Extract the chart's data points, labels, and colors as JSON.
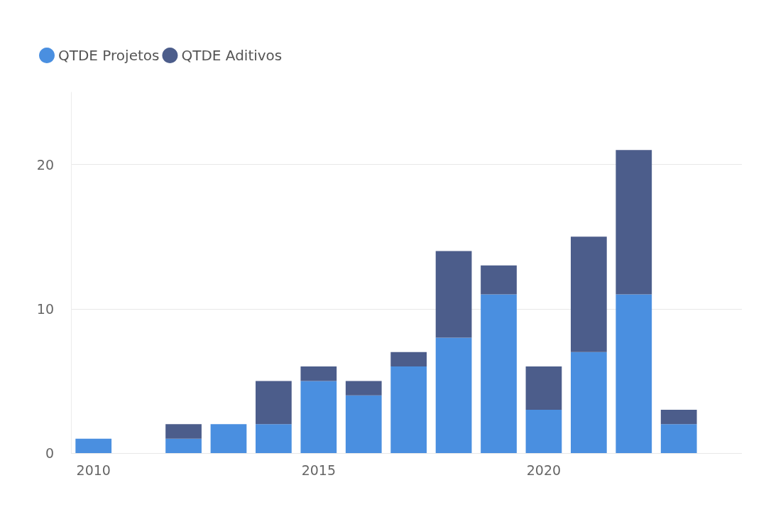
{
  "chart_data": {
    "type": "bar",
    "stacked": true,
    "x": [
      2010,
      2011,
      2012,
      2013,
      2014,
      2015,
      2016,
      2017,
      2018,
      2019,
      2020,
      2021,
      2022,
      2023
    ],
    "series": [
      {
        "name": "QTDE Projetos",
        "color": "#4a8fe0",
        "values": [
          1,
          null,
          1,
          2,
          2,
          5,
          4,
          6,
          8,
          11,
          3,
          7,
          11,
          2
        ]
      },
      {
        "name": "QTDE Aditivos",
        "color": "#4c5d8b",
        "values": [
          0,
          null,
          1,
          0,
          3,
          1,
          1,
          1,
          6,
          2,
          3,
          8,
          10,
          1
        ]
      }
    ],
    "xlim": [
      2009.5,
      2024.4
    ],
    "xticks": [
      2010,
      2015,
      2020
    ],
    "ylim": [
      0,
      25
    ],
    "yticks": [
      0,
      10,
      20
    ],
    "grid": "y",
    "legend": "top left"
  }
}
